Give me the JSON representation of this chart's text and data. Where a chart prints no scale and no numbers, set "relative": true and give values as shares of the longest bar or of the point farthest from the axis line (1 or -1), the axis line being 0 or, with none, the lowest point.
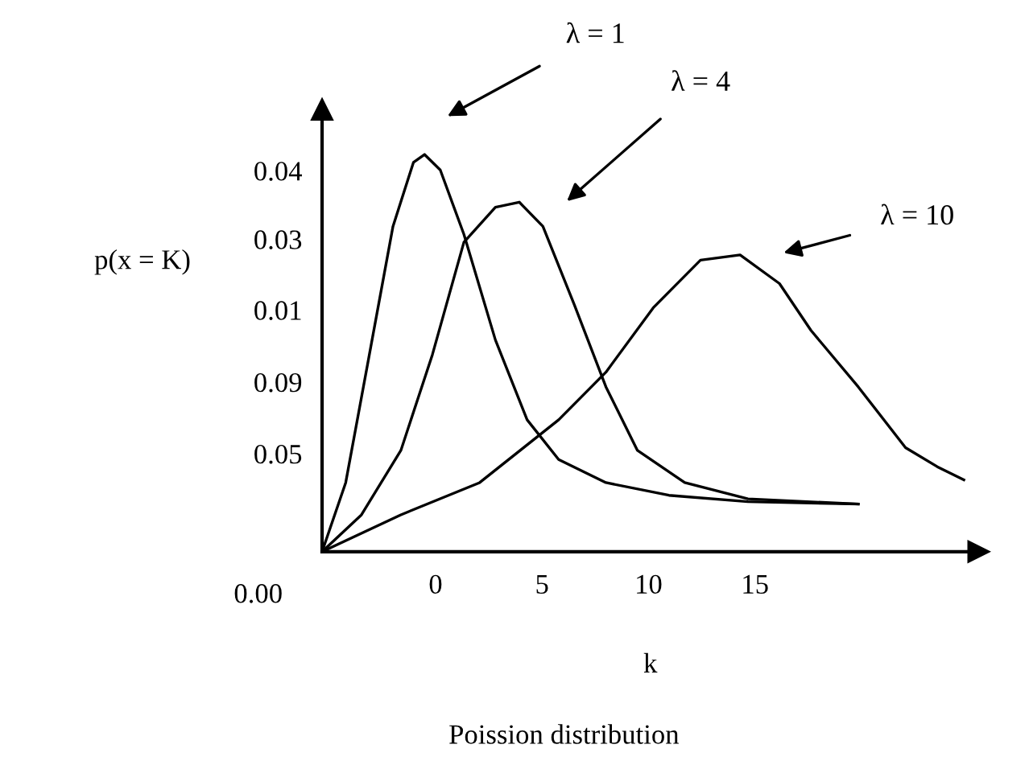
{
  "chart_data": {
    "type": "line",
    "title": "Poission distribution",
    "xlabel": "k",
    "ylabel": "p(x = K)",
    "relative": true,
    "xlim": [
      -5.33,
      25.5
    ],
    "xticks": [
      0,
      5,
      10,
      15
    ],
    "grid": false,
    "legend": false,
    "marker": "none",
    "line_style": "solid",
    "series": [
      {
        "color": "#000000",
        "x": [
          -5.33,
          -4.22,
          -3.11,
          -2.0,
          -1.04,
          -0.52,
          0.22,
          1.33,
          2.81,
          4.3,
          5.78,
          8.0,
          10.96,
          14.67,
          19.85
        ],
        "values": [
          0,
          0.174,
          0.496,
          0.819,
          0.98,
          1,
          0.961,
          0.799,
          0.533,
          0.332,
          0.232,
          0.174,
          0.142,
          0.126,
          0.12
        ]
      },
      {
        "color": "#000000",
        "x": [
          -5.33,
          -3.48,
          -1.63,
          -0.15,
          1.33,
          2.81,
          3.93,
          5.04,
          6.52,
          8.0,
          9.48,
          11.7,
          14.67,
          19.85
        ],
        "values": [
          0,
          0.093,
          0.255,
          0.496,
          0.779,
          0.867,
          0.88,
          0.819,
          0.621,
          0.415,
          0.255,
          0.174,
          0.133,
          0.12
        ]
      },
      {
        "color": "#000000",
        "x": [
          -5.33,
          -1.63,
          2.07,
          5.78,
          8.0,
          10.22,
          12.44,
          14.3,
          16.15,
          17.63,
          19.85,
          22.07,
          23.56,
          24.81
        ],
        "values": [
          0,
          0.093,
          0.174,
          0.332,
          0.452,
          0.614,
          0.734,
          0.747,
          0.675,
          0.557,
          0.415,
          0.262,
          0.214,
          0.181
        ]
      }
    ],
    "annotations": [
      "λ = 1",
      "λ = 4",
      "λ = 10",
      "0.00",
      "0.05",
      "0.09",
      "0.01",
      "0.03",
      "0.04"
    ]
  }
}
